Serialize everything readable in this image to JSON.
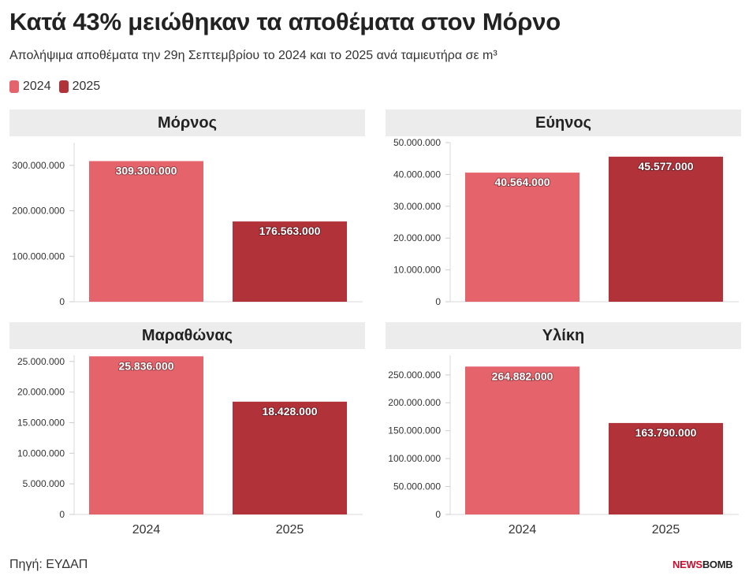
{
  "title": "Κατά 43% μειώθηκαν τα αποθέματα στον Μόρνο",
  "subtitle": "Απολήψιμα αποθέματα την 29η Σεπτεμβρίου το 2024 και το 2025 ανά ταμιευτήρα σε m³",
  "legend": [
    {
      "label": "2024",
      "color": "#e5636b"
    },
    {
      "label": "2025",
      "color": "#b2323a"
    }
  ],
  "source": "Πηγή: ΕΥΔΑΠ",
  "logo": {
    "part1": "NEWS",
    "part2": "BOMB"
  },
  "chart_data": [
    {
      "type": "bar",
      "title": "Μόρνος",
      "categories": [
        "2024",
        "2025"
      ],
      "values": [
        309300000,
        176563000
      ],
      "value_labels": [
        "309.300.000",
        "176.563.000"
      ],
      "yticks": [
        0,
        100000000,
        200000000,
        300000000
      ],
      "ytick_labels": [
        "0",
        "100.000.000",
        "200.000.000",
        "300.000.000"
      ],
      "ylim": [
        0,
        350000000
      ],
      "colors": [
        "#e5636b",
        "#b2323a"
      ],
      "show_xticks": false
    },
    {
      "type": "bar",
      "title": "Εύηνος",
      "categories": [
        "2024",
        "2025"
      ],
      "values": [
        40564000,
        45577000
      ],
      "value_labels": [
        "40.564.000",
        "45.577.000"
      ],
      "yticks": [
        0,
        10000000,
        20000000,
        30000000,
        40000000,
        50000000
      ],
      "ytick_labels": [
        "0",
        "10.000.000",
        "20.000.000",
        "30.000.000",
        "40.000.000",
        "50.000.000"
      ],
      "ylim": [
        0,
        50000000
      ],
      "colors": [
        "#e5636b",
        "#b2323a"
      ],
      "show_xticks": false
    },
    {
      "type": "bar",
      "title": "Μαραθώνας",
      "categories": [
        "2024",
        "2025"
      ],
      "values": [
        25836000,
        18428000
      ],
      "value_labels": [
        "25.836.000",
        "18.428.000"
      ],
      "yticks": [
        0,
        5000000,
        10000000,
        15000000,
        20000000,
        25000000
      ],
      "ytick_labels": [
        "0",
        "5.000.000",
        "10.000.000",
        "15.000.000",
        "20.000.000",
        "25.000.000"
      ],
      "ylim": [
        0,
        26000000
      ],
      "colors": [
        "#e5636b",
        "#b2323a"
      ],
      "show_xticks": true
    },
    {
      "type": "bar",
      "title": "Υλίκη",
      "categories": [
        "2024",
        "2025"
      ],
      "values": [
        264882000,
        163790000
      ],
      "value_labels": [
        "264.882.000",
        "163.790.000"
      ],
      "yticks": [
        0,
        50000000,
        100000000,
        150000000,
        200000000,
        250000000
      ],
      "ytick_labels": [
        "0",
        "50.000.000",
        "100.000.000",
        "150.000.000",
        "200.000.000",
        "250.000.000"
      ],
      "ylim": [
        0,
        285000000
      ],
      "colors": [
        "#e5636b",
        "#b2323a"
      ],
      "show_xticks": true
    }
  ]
}
